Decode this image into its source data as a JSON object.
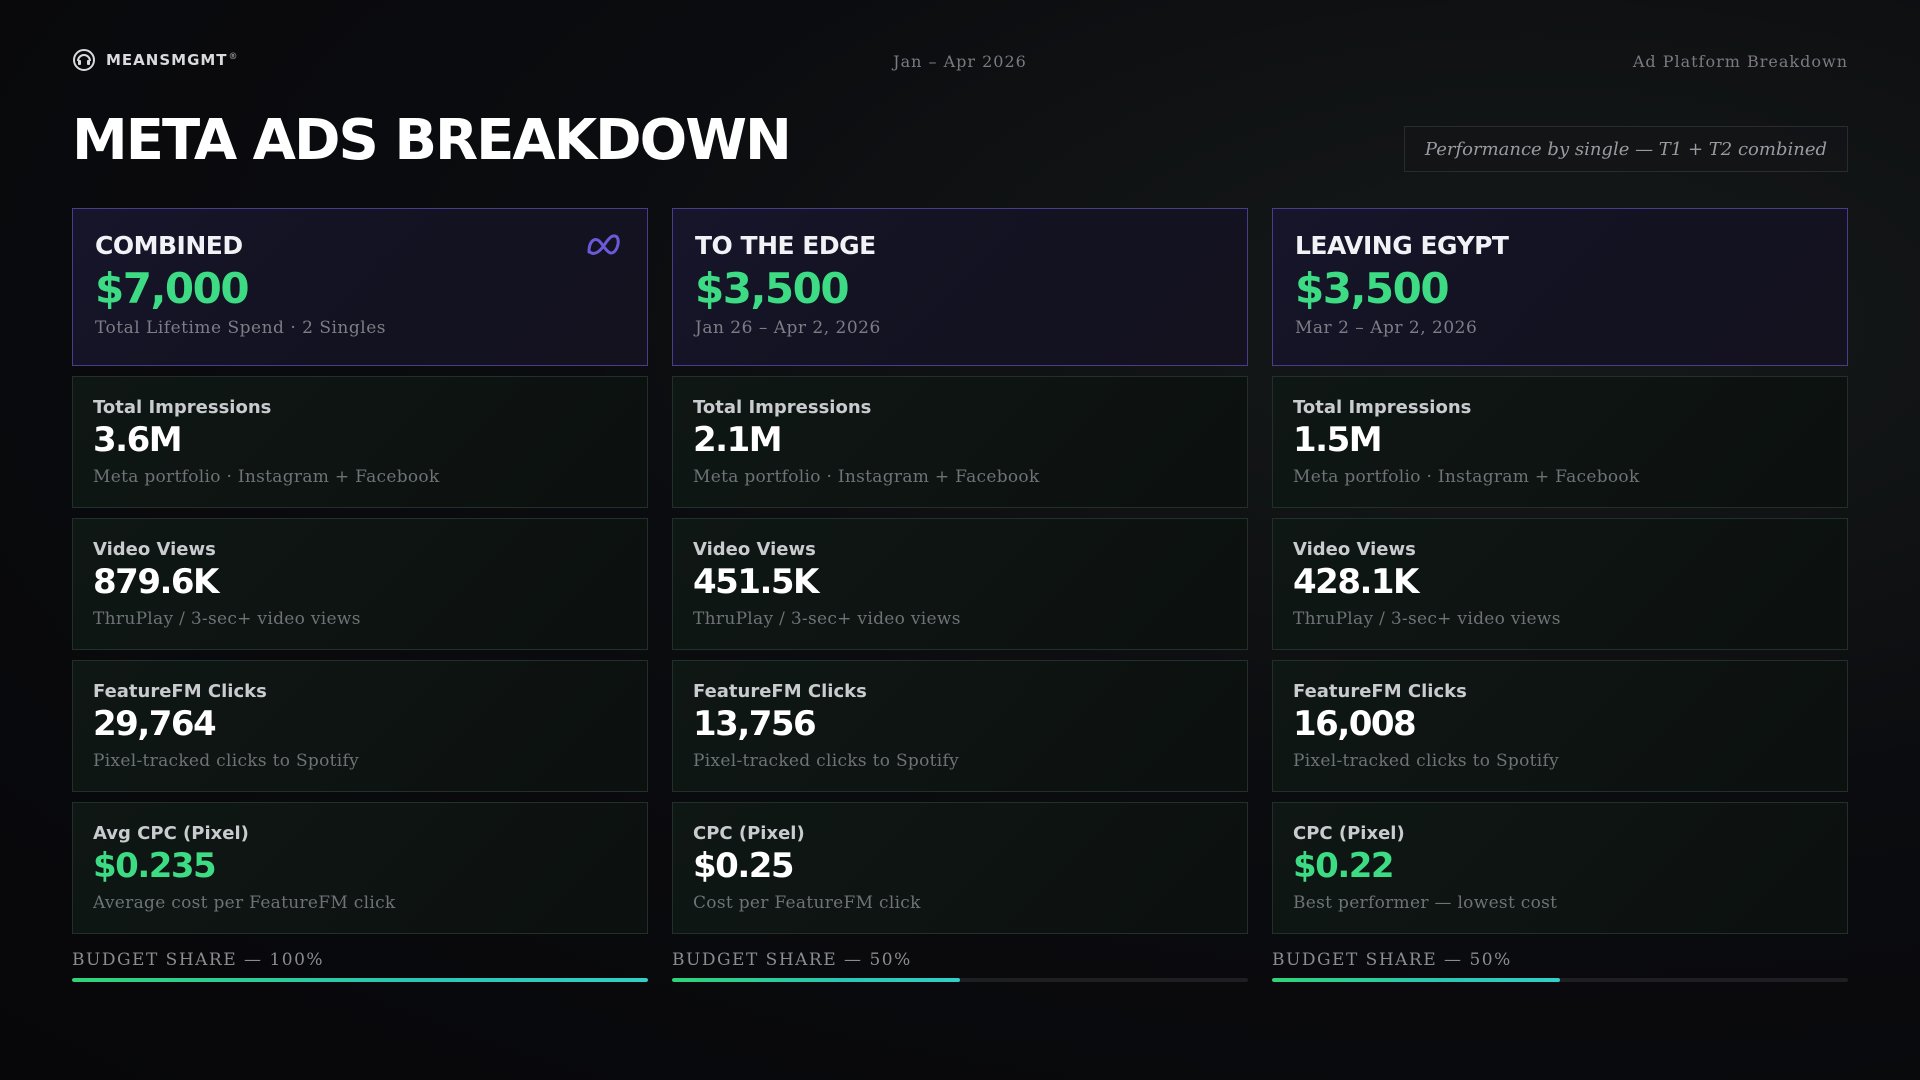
{
  "brand": {
    "name": "MEANSMGMT",
    "registered": "®",
    "logo_icon": "headphones-logo-icon"
  },
  "header": {
    "date_range": "Jan – Apr 2026",
    "section": "Ad Platform Breakdown",
    "title": "META ADS BREAKDOWN",
    "subtitle": "Performance by single — T1 + T2 combined"
  },
  "colors": {
    "accent_green": "#3ddc84",
    "accent_purple": "#4a3c8c",
    "meta_icon": "#6a5ad9",
    "bar_teal": "#2bc6b4"
  },
  "columns": [
    {
      "title": "COMBINED",
      "amount": "$7,000",
      "sub": "Total Lifetime Spend · 2 Singles",
      "show_meta_icon": true,
      "metrics": [
        {
          "label": "Total Impressions",
          "value": "3.6M",
          "desc": "Meta portfolio · Instagram + Facebook",
          "highlight": false
        },
        {
          "label": "Video Views",
          "value": "879.6K",
          "desc": "ThruPlay / 3-sec+ video views",
          "highlight": false
        },
        {
          "label": "FeatureFM Clicks",
          "value": "29,764",
          "desc": "Pixel-tracked clicks to Spotify",
          "highlight": false
        },
        {
          "label": "Avg CPC (Pixel)",
          "value": "$0.235",
          "desc": "Average cost per FeatureFM click",
          "highlight": true
        }
      ],
      "budget_label": "BUDGET SHARE — 100%",
      "budget_share": 1.0
    },
    {
      "title": "TO THE EDGE",
      "amount": "$3,500",
      "sub": "Jan 26 – Apr 2, 2026",
      "show_meta_icon": false,
      "metrics": [
        {
          "label": "Total Impressions",
          "value": "2.1M",
          "desc": "Meta portfolio · Instagram + Facebook",
          "highlight": false
        },
        {
          "label": "Video Views",
          "value": "451.5K",
          "desc": "ThruPlay / 3-sec+ video views",
          "highlight": false
        },
        {
          "label": "FeatureFM Clicks",
          "value": "13,756",
          "desc": "Pixel-tracked clicks to Spotify",
          "highlight": false
        },
        {
          "label": "CPC (Pixel)",
          "value": "$0.25",
          "desc": "Cost per FeatureFM click",
          "highlight": false
        }
      ],
      "budget_label": "BUDGET SHARE — 50%",
      "budget_share": 0.5
    },
    {
      "title": "LEAVING EGYPT",
      "amount": "$3,500",
      "sub": "Mar 2 – Apr 2, 2026",
      "show_meta_icon": false,
      "metrics": [
        {
          "label": "Total Impressions",
          "value": "1.5M",
          "desc": "Meta portfolio · Instagram + Facebook",
          "highlight": false
        },
        {
          "label": "Video Views",
          "value": "428.1K",
          "desc": "ThruPlay / 3-sec+ video views",
          "highlight": false
        },
        {
          "label": "FeatureFM Clicks",
          "value": "16,008",
          "desc": "Pixel-tracked clicks to Spotify",
          "highlight": false
        },
        {
          "label": "CPC (Pixel)",
          "value": "$0.22",
          "desc": "Best performer — lowest cost",
          "highlight": true
        }
      ],
      "budget_label": "BUDGET SHARE — 50%",
      "budget_share": 0.5
    }
  ]
}
